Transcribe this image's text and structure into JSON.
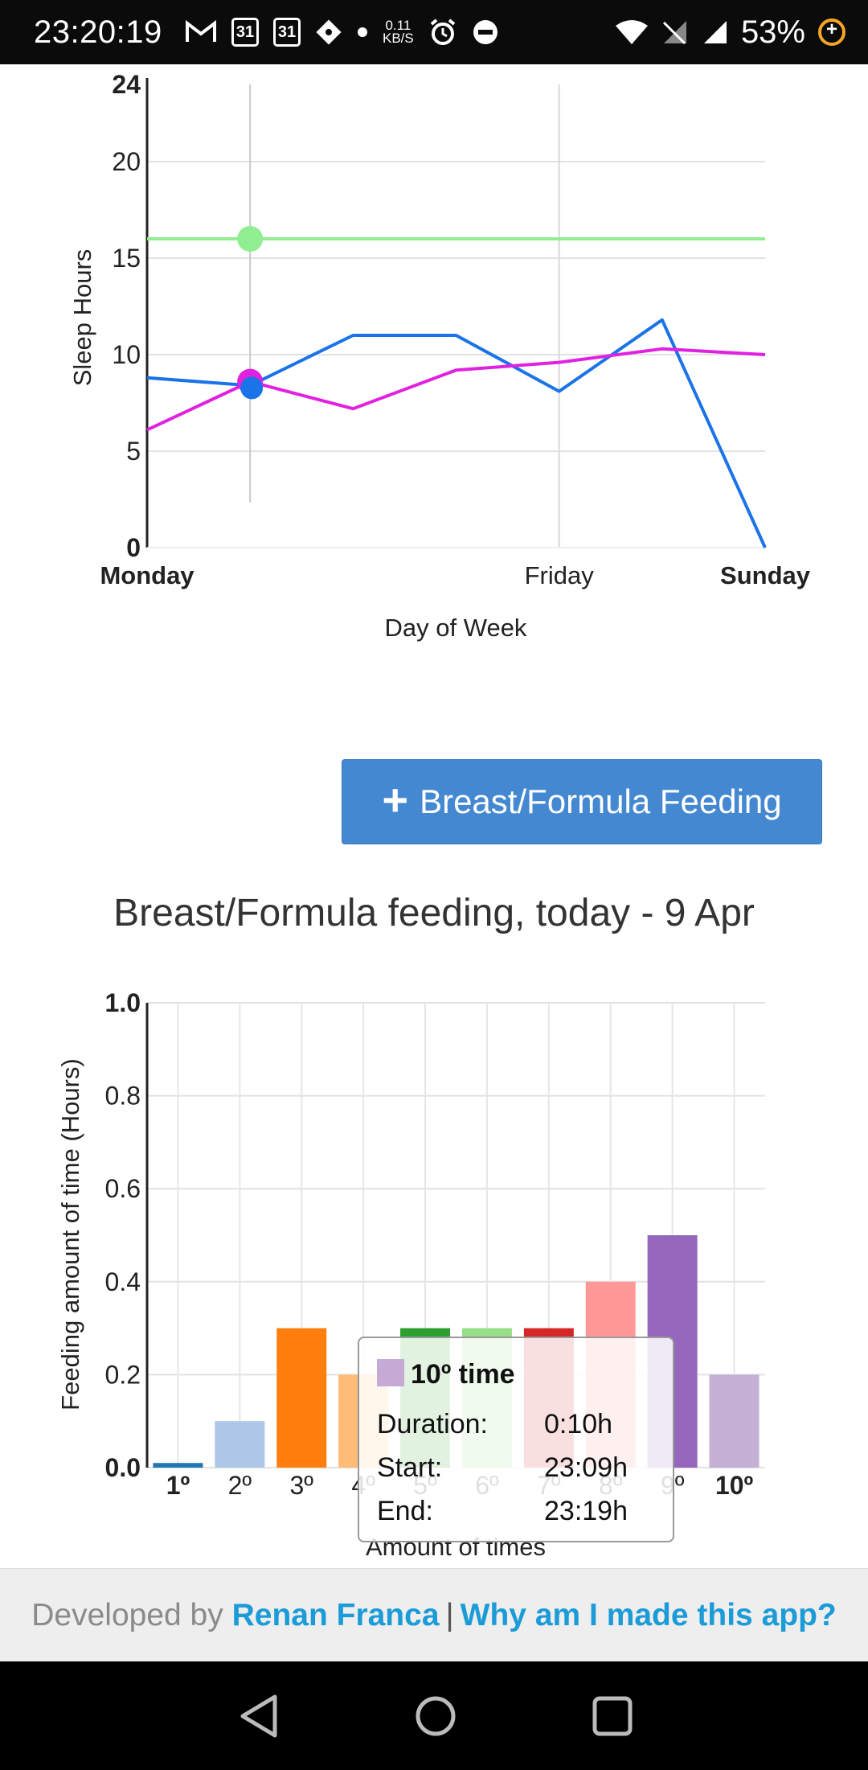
{
  "status_bar": {
    "time": "23:20:19",
    "calendar_day_1": "31",
    "calendar_day_2": "31",
    "data_rate_value": "0.11",
    "data_rate_unit": "KB/S",
    "battery": "53%",
    "icons": [
      "gmail-icon",
      "calendar-icon",
      "calendar-icon",
      "maps-icon",
      "dot-icon",
      "data-rate-icon",
      "alarm-icon",
      "dnd-icon",
      "wifi-icon",
      "no-signal-icon",
      "signal-icon",
      "battery-saver-icon"
    ]
  },
  "sleep_chart": {
    "chart_data": {
      "type": "line",
      "title": "",
      "xlabel": "Day of Week",
      "ylabel": "Sleep Hours",
      "x_tick_labels": [
        "Monday",
        "Friday",
        "Sunday"
      ],
      "x_count": 7,
      "ylim": [
        0,
        24
      ],
      "y_ticks": [
        "0",
        "5",
        "10",
        "15",
        "20",
        "24"
      ],
      "grid": true,
      "series": [
        {
          "color": "#90ee90",
          "values": [
            16,
            16,
            16,
            16,
            16,
            16,
            16
          ]
        },
        {
          "color": "#1a73e8",
          "values": [
            8.8,
            8.4,
            11,
            11,
            8.1,
            11.8,
            0
          ]
        },
        {
          "color": "#e022e0",
          "values": [
            6.1,
            8.6,
            7.2,
            9.2,
            9.6,
            10.3,
            10
          ]
        }
      ],
      "hover_index": 1
    }
  },
  "feeding": {
    "add_button_label": "Breast/Formula Feeding",
    "title": "Breast/Formula feeding, today - 9 Apr"
  },
  "feeding_chart": {
    "chart_data": {
      "type": "bar",
      "title": "",
      "xlabel": "Amount of times",
      "ylabel": "Feeding amount of time (Hours)",
      "ylim": [
        0,
        1
      ],
      "y_ticks": [
        "0.0",
        "0.2",
        "0.4",
        "0.6",
        "0.8",
        "1.0"
      ],
      "grid": true,
      "categories": [
        "1º",
        "2º",
        "3º",
        "4º",
        "5º",
        "6º",
        "7º",
        "8º",
        "9º",
        "10º"
      ],
      "values": [
        0.01,
        0.1,
        0.3,
        0.2,
        0.3,
        0.3,
        0.3,
        0.4,
        0.5,
        0.2
      ],
      "colors": [
        "#1f77b4",
        "#aec7e8",
        "#ff7f0e",
        "#ffbb78",
        "#2ca02c",
        "#98df8a",
        "#d62728",
        "#ff9896",
        "#9467bd",
        "#c5b0d5"
      ],
      "bold_categories": [
        "1º",
        "10º"
      ]
    },
    "tooltip": {
      "title": "10º time",
      "duration_label": "Duration:",
      "duration_value": "0:10h",
      "start_label": "Start:",
      "start_value": "23:09h",
      "end_label": "End:",
      "end_value": "23:19h"
    }
  },
  "footer": {
    "prefix": "Developed by",
    "author": "Renan Franca",
    "separator": "|",
    "link": "Why am I made this app?"
  }
}
